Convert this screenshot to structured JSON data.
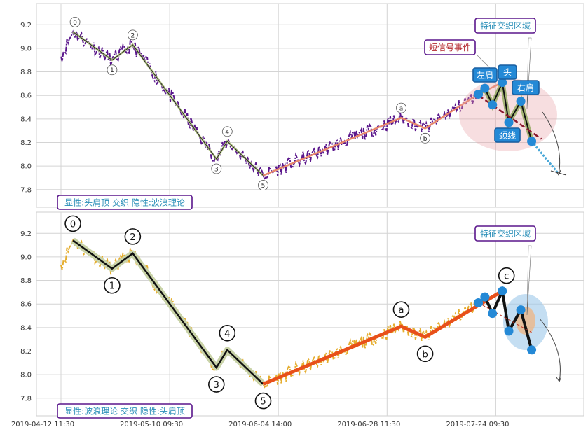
{
  "chart_data": [
    {
      "type": "line",
      "panel": "top",
      "ylim": [
        7.65,
        9.38
      ],
      "y_ticks": [
        7.8,
        8.0,
        8.2,
        8.4,
        8.6,
        8.8,
        9.0,
        9.2
      ],
      "grid": true,
      "price_series": {
        "color": "#5a168c",
        "style": "dash-dot"
      },
      "wave_points": [
        {
          "label": "0",
          "t": 0.11,
          "v": 9.14
        },
        {
          "label": "1",
          "t": 0.47,
          "v": 8.9
        },
        {
          "label": "2",
          "t": 0.66,
          "v": 9.03
        },
        {
          "label": "3",
          "t": 1.43,
          "v": 8.06
        },
        {
          "label": "4",
          "t": 1.53,
          "v": 8.21
        },
        {
          "label": "5",
          "t": 1.86,
          "v": 7.92
        },
        {
          "label": "a",
          "t": 3.13,
          "v": 8.41
        },
        {
          "label": "b",
          "t": 3.35,
          "v": 8.32
        }
      ],
      "hs_points": [
        {
          "t": 3.84,
          "v": 8.61
        },
        {
          "t": 3.9,
          "v": 8.66
        },
        {
          "t": 3.97,
          "v": 8.52
        },
        {
          "t": 4.06,
          "v": 8.71
        },
        {
          "t": 4.12,
          "v": 8.37
        },
        {
          "t": 4.23,
          "v": 8.55
        },
        {
          "t": 4.33,
          "v": 8.21
        }
      ],
      "neckline": [
        {
          "t": 3.84,
          "v": 8.6
        },
        {
          "t": 4.42,
          "v": 8.23
        }
      ],
      "annotations": {
        "feature_zone": "特征交织区域",
        "short_signal": "短信号事件",
        "left_shoulder": "左肩",
        "head": "头",
        "right_shoulder": "右肩",
        "neck": "颈线"
      },
      "caption": "显性:头肩顶 交织 隐性:波浪理论"
    },
    {
      "type": "line",
      "panel": "bottom",
      "ylim": [
        7.65,
        9.38
      ],
      "y_ticks": [
        7.8,
        8.0,
        8.2,
        8.4,
        8.6,
        8.8,
        9.0,
        9.2
      ],
      "grid": true,
      "price_series": {
        "color": "#e5ad2e",
        "style": "dash-dot"
      },
      "wave_points": [
        {
          "label": "0",
          "t": 0.11,
          "v": 9.14
        },
        {
          "label": "1",
          "t": 0.47,
          "v": 8.9
        },
        {
          "label": "2",
          "t": 0.66,
          "v": 9.03
        },
        {
          "label": "3",
          "t": 1.43,
          "v": 8.06
        },
        {
          "label": "4",
          "t": 1.53,
          "v": 8.21
        },
        {
          "label": "5",
          "t": 1.86,
          "v": 7.92
        },
        {
          "label": "a",
          "t": 3.13,
          "v": 8.41
        },
        {
          "label": "b",
          "t": 3.35,
          "v": 8.32
        },
        {
          "label": "c",
          "t": 4.06,
          "v": 8.71
        }
      ],
      "hs_points": [
        {
          "t": 3.84,
          "v": 8.61
        },
        {
          "t": 3.9,
          "v": 8.66
        },
        {
          "t": 3.97,
          "v": 8.52
        },
        {
          "t": 4.06,
          "v": 8.71
        },
        {
          "t": 4.12,
          "v": 8.37
        },
        {
          "t": 4.23,
          "v": 8.55
        },
        {
          "t": 4.33,
          "v": 8.21
        }
      ],
      "annotations": {
        "feature_zone": "特征交织区域"
      },
      "caption": "显性:波浪理论 交织 隐性:头肩顶"
    }
  ],
  "x_ticks": [
    {
      "t": 0,
      "label": "2019-04-12 11:30"
    },
    {
      "t": 1,
      "label": "2019-05-10 09:30"
    },
    {
      "t": 2,
      "label": "2019-06-04 14:00"
    },
    {
      "t": 3,
      "label": "2019-06-28 11:30"
    },
    {
      "t": 4,
      "label": "2019-07-24 09:30"
    }
  ],
  "colors": {
    "hidden_hs": "#8b1a2e",
    "wave_line": "#e8876a",
    "wave_line_bottom": "#e8501a",
    "marker": "#2489d6",
    "box_border": "#5a168c",
    "box_text": "#2a8fb8",
    "short_signal_text": "#b4282e"
  }
}
